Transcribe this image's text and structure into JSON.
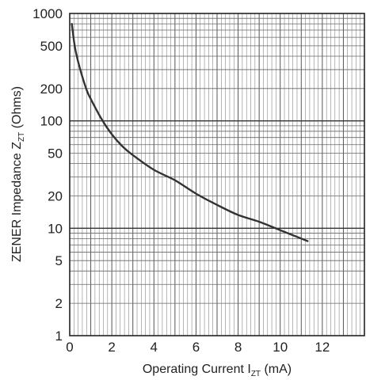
{
  "chart_data": {
    "type": "line",
    "xlabel": {
      "main": "Operating Current I",
      "sub": "ZT",
      "unit": " (mA)"
    },
    "ylabel": {
      "main": "ZENER Impedance Z",
      "sub": "ZT",
      "unit": " (Ohms)"
    },
    "x_axis": {
      "scale": "linear",
      "min": 0,
      "max": 14,
      "ticks": [
        {
          "v": 0,
          "label": "0"
        },
        {
          "v": 2,
          "label": "2"
        },
        {
          "v": 4,
          "label": "4"
        },
        {
          "v": 6,
          "label": "6"
        },
        {
          "v": 8,
          "label": "8"
        },
        {
          "v": 10,
          "label": "10"
        },
        {
          "v": 12,
          "label": "12"
        }
      ]
    },
    "y_axis": {
      "scale": "log",
      "min": 1,
      "max": 1000,
      "ticks": [
        {
          "v": 1,
          "label": "1"
        },
        {
          "v": 2,
          "label": "2"
        },
        {
          "v": 5,
          "label": "5"
        },
        {
          "v": 10,
          "label": "10"
        },
        {
          "v": 20,
          "label": "20"
        },
        {
          "v": 50,
          "label": "50"
        },
        {
          "v": 100,
          "label": "100"
        },
        {
          "v": 200,
          "label": "200"
        },
        {
          "v": 500,
          "label": "500"
        },
        {
          "v": 1000,
          "label": "1000"
        }
      ]
    },
    "grid": true,
    "series": [
      {
        "x": [
          0.1,
          0.2,
          0.3,
          0.5,
          0.8,
          1.0,
          1.5,
          2.0,
          2.5,
          3.0,
          4.0,
          5.0,
          6.0,
          7.0,
          8.0,
          9.0,
          10.0,
          11.3
        ],
        "y": [
          800,
          560,
          430,
          300,
          195,
          160,
          105,
          75,
          58,
          48,
          35,
          28,
          21,
          16.5,
          13.3,
          11.5,
          9.6,
          7.6
        ]
      }
    ],
    "colors": {
      "line": "#333333",
      "grid": "#7a7a7a",
      "grid_major": "#333333",
      "frame": "#222222"
    }
  }
}
